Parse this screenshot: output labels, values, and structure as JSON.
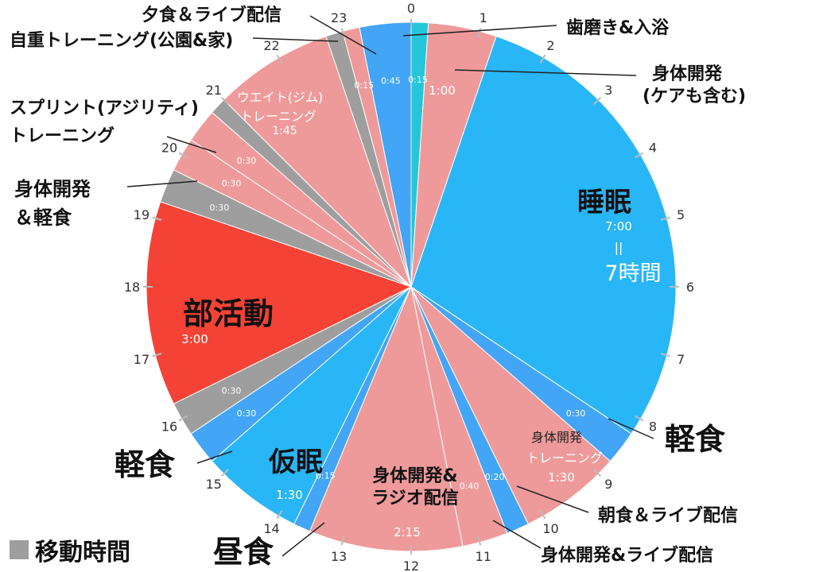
{
  "chart_data": {
    "type": "pie",
    "unit": "hours (24h day clock)",
    "slices": [
      {
        "name": "歯磨き&入浴",
        "start": 0.0,
        "duration": 0.25,
        "duration_label": "0:15",
        "color": "#26c6da"
      },
      {
        "name": "身体開発(ケアも含む)",
        "start": 0.25,
        "duration": 1.0,
        "duration_label": "1:00",
        "color": "#ee9a9a"
      },
      {
        "name": "睡眠",
        "start": 1.25,
        "duration": 7.0,
        "duration_label": "7:00",
        "color": "#29b6f6"
      },
      {
        "name": "軽食",
        "start": 8.25,
        "duration": 0.5,
        "duration_label": "0:30",
        "color": "#42a5f5"
      },
      {
        "name": "身体開発トレーニング",
        "start": 8.75,
        "duration": 1.5,
        "duration_label": "1:30",
        "color": "#ee9a9a"
      },
      {
        "name": "朝食&ライブ配信",
        "start": 10.25,
        "duration": 0.333,
        "duration_label": "0:20",
        "color": "#42a5f5"
      },
      {
        "name": "身体開発&ライブ配信",
        "start": 10.583,
        "duration": 0.667,
        "duration_label": "0:40",
        "color": "#ee9a9a"
      },
      {
        "name": "身体開発&ラジオ配信",
        "start": 11.25,
        "duration": 2.25,
        "duration_label": "2:15",
        "color": "#ee9a9a"
      },
      {
        "name": "昼食",
        "start": 13.5,
        "duration": 0.25,
        "duration_label": "0:15",
        "color": "#42a5f5"
      },
      {
        "name": "仮眠",
        "start": 13.75,
        "duration": 1.5,
        "duration_label": "1:30",
        "color": "#29b6f6"
      },
      {
        "name": "軽食",
        "start": 15.25,
        "duration": 0.5,
        "duration_label": "0:30",
        "color": "#42a5f5"
      },
      {
        "name": "移動時間",
        "start": 15.75,
        "duration": 0.5,
        "duration_label": "0:30",
        "color": "#9e9e9e"
      },
      {
        "name": "部活動",
        "start": 16.25,
        "duration": 3.0,
        "duration_label": "3:00",
        "color": "#f44336"
      },
      {
        "name": "移動時間",
        "start": 19.25,
        "duration": 0.5,
        "duration_label": "0:30",
        "color": "#9e9e9e"
      },
      {
        "name": "身体開発&軽食",
        "start": 19.75,
        "duration": 0.5,
        "duration_label": "0:30",
        "color": "#ee9a9a"
      },
      {
        "name": "スプリント(アジリティ)トレーニング",
        "start": 20.25,
        "duration": 0.5,
        "duration_label": "0:30",
        "color": "#ee9a9a"
      },
      {
        "name": "移動時間",
        "start": 20.75,
        "duration": 0.25,
        "duration_label": "",
        "color": "#9e9e9e"
      },
      {
        "name": "ウエイト(ジム)トレーニング",
        "start": 21.0,
        "duration": 1.75,
        "duration_label": "1:45",
        "color": "#ee9a9a"
      },
      {
        "name": "移動時間",
        "start": 22.75,
        "duration": 0.25,
        "duration_label": "",
        "color": "#9e9e9e"
      },
      {
        "name": "自重トレーニング(公園&家)",
        "start": 23.0,
        "duration": 0.25,
        "duration_label": "0:15",
        "color": "#ee9a9a"
      },
      {
        "name": "夕食&ライブ配信",
        "start": 23.25,
        "duration": 0.75,
        "duration_label": "0:45",
        "color": "#42a5f5"
      }
    ],
    "hour_ticks": [
      "0",
      "1",
      "2",
      "3",
      "4",
      "5",
      "6",
      "7",
      "8",
      "9",
      "10",
      "11",
      "12",
      "13",
      "14",
      "15",
      "16",
      "17",
      "18",
      "19",
      "20",
      "21",
      "22",
      "23"
    ],
    "legend": {
      "label": "移動時間",
      "color": "#9e9e9e"
    }
  },
  "labels": {
    "sleep_title": "睡眠",
    "sleep_duration": "7:00",
    "sleep_eq": "||",
    "sleep_hours": "7時間",
    "club": "部活動",
    "club_duration": "3:00",
    "nap": "仮眠",
    "nap_duration": "1:30",
    "body_radio_1": "身体開発&",
    "body_radio_2": "ラジオ配信",
    "body_radio_duration": "2:15",
    "body_train_1": "身体開発",
    "body_train_2": "トレーニング",
    "body_train_duration": "1:30",
    "weight_1": "ウエイト(ジム)",
    "weight_2": "トレーニング",
    "weight_duration": "1:45",
    "body_care_duration": "1:00",
    "bath": "歯磨き&入浴",
    "body_care_1": "身体開発",
    "body_care_2": "(ケアも含む)",
    "snack_morning": "軽食",
    "breakfast": "朝食＆ライブ配信",
    "body_live": "身体開発&ライブ配信",
    "lunch": "昼食",
    "snack_afternoon": "軽食",
    "body_snack_1": "身体開発",
    "body_snack_2": "＆軽食",
    "sprint_1": "スプリント(アジリティ)",
    "sprint_2": "トレーニング",
    "bodyweight": "自重トレーニング(公園&家)",
    "dinner": "夕食＆ライブ配信",
    "legend": "移動時間"
  }
}
